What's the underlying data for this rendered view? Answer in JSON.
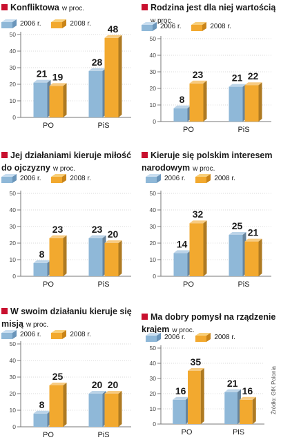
{
  "colors": {
    "series_2006": "#8fb8d8",
    "series_2008": "#f2a92f",
    "red_square": "#c8102e"
  },
  "legend": {
    "s2006": "2006 r.",
    "s2008": "2008 r."
  },
  "source": "Źródło: GfK Polonia",
  "chart_data": [
    {
      "type": "bar",
      "title": "Konfliktowa",
      "unit": "w proc.",
      "categories": [
        "PO",
        "PiS"
      ],
      "series": [
        {
          "name": "2006 r.",
          "values": [
            21,
            28
          ]
        },
        {
          "name": "2008 r.",
          "values": [
            19,
            48
          ]
        }
      ],
      "ylim": [
        0,
        50
      ],
      "yticks": [
        0,
        10,
        20,
        30,
        40,
        50
      ]
    },
    {
      "type": "bar",
      "title": "Rodzina jest dla niej wartością",
      "unit": "w proc.",
      "categories": [
        "PO",
        "PiS"
      ],
      "series": [
        {
          "name": "2006 r.",
          "values": [
            8,
            21
          ]
        },
        {
          "name": "2008 r.",
          "values": [
            23,
            22
          ]
        }
      ],
      "ylim": [
        0,
        50
      ],
      "yticks": [
        0,
        10,
        20,
        30,
        40,
        50
      ]
    },
    {
      "type": "bar",
      "title": "Jej działaniami kieruje miłość do ojczyzny",
      "unit": "w proc.",
      "categories": [
        "PO",
        "PiS"
      ],
      "series": [
        {
          "name": "2006 r.",
          "values": [
            8,
            23
          ]
        },
        {
          "name": "2008 r.",
          "values": [
            23,
            20
          ]
        }
      ],
      "ylim": [
        0,
        50
      ],
      "yticks": [
        0,
        10,
        20,
        30,
        40,
        50
      ]
    },
    {
      "type": "bar",
      "title": "Kieruje się polskim interesem narodowym",
      "unit": "w proc.",
      "categories": [
        "PO",
        "PiS"
      ],
      "series": [
        {
          "name": "2006 r.",
          "values": [
            14,
            25
          ]
        },
        {
          "name": "2008 r.",
          "values": [
            32,
            21
          ]
        }
      ],
      "ylim": [
        0,
        50
      ],
      "yticks": [
        0,
        10,
        20,
        30,
        40,
        50
      ]
    },
    {
      "type": "bar",
      "title": "W swoim działaniu kieruje się misją",
      "unit": "w proc.",
      "categories": [
        "PO",
        "PiS"
      ],
      "series": [
        {
          "name": "2006 r.",
          "values": [
            8,
            20
          ]
        },
        {
          "name": "2008 r.",
          "values": [
            25,
            20
          ]
        }
      ],
      "ylim": [
        0,
        50
      ],
      "yticks": [
        0,
        10,
        20,
        30,
        40,
        50
      ]
    },
    {
      "type": "bar",
      "title": "Ma dobry pomysł na rządzenie krajem",
      "unit": "w proc.",
      "categories": [
        "PO",
        "PiS"
      ],
      "series": [
        {
          "name": "2006 r.",
          "values": [
            16,
            21
          ]
        },
        {
          "name": "2008 r.",
          "values": [
            35,
            16
          ]
        }
      ],
      "ylim": [
        0,
        50
      ],
      "yticks": [
        0,
        10,
        20,
        30,
        40,
        50
      ]
    }
  ]
}
